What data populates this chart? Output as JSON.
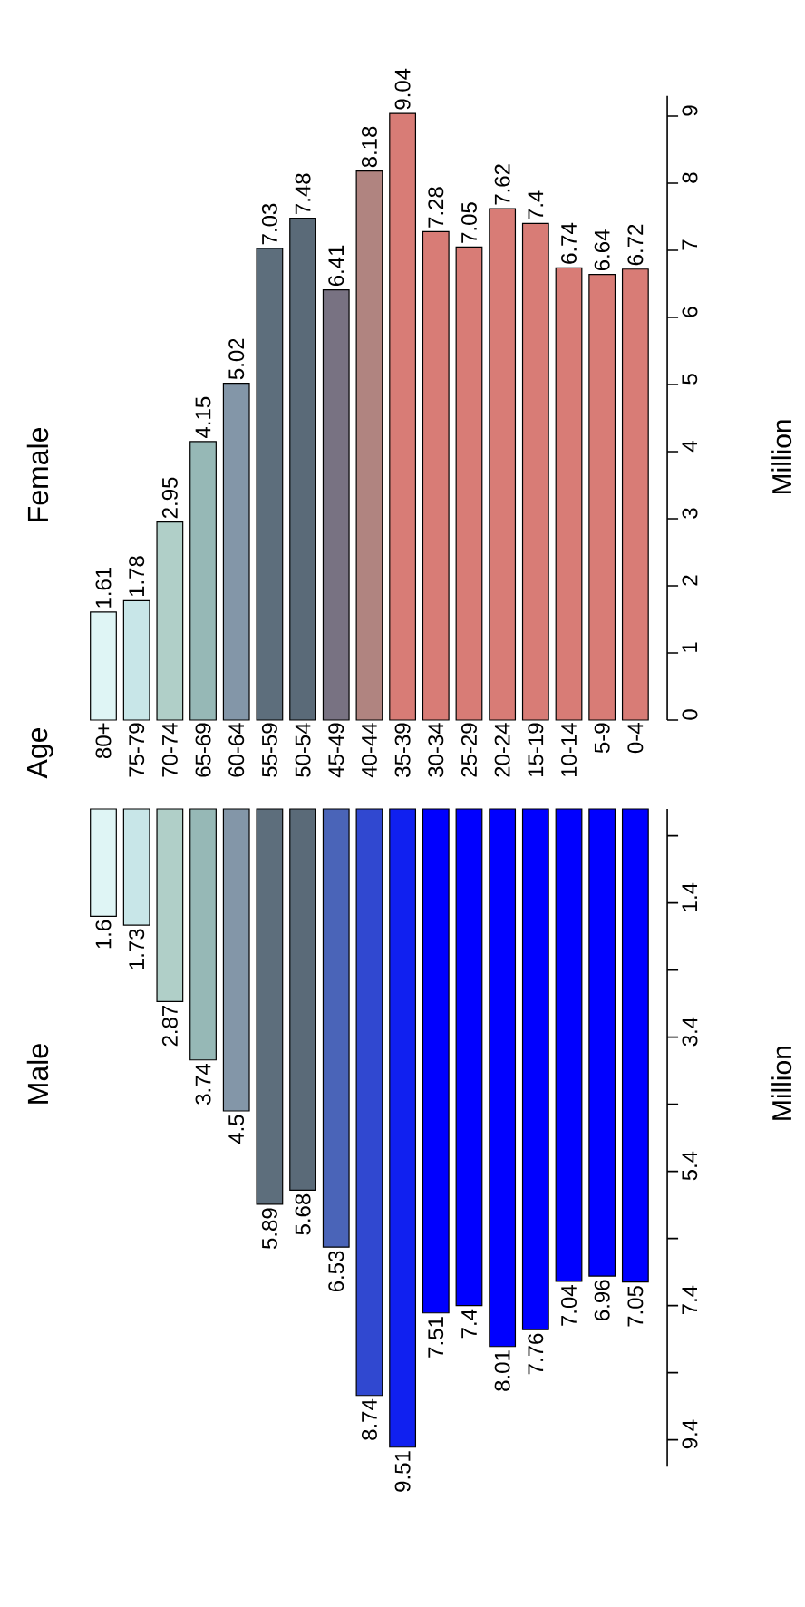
{
  "chart_data": [
    {
      "type": "bar",
      "title": "Female",
      "ylabel": "Million",
      "annotations": [
        "Age"
      ],
      "categories": [
        "80+",
        "75-79",
        "70-74",
        "65-69",
        "60-64",
        "55-59",
        "50-54",
        "45-49",
        "40-44",
        "35-39",
        "30-34",
        "25-29",
        "20-24",
        "15-19",
        "10-14",
        "5-9",
        "0-4"
      ],
      "values": [
        1.61,
        1.78,
        2.95,
        4.15,
        5.02,
        7.03,
        7.48,
        6.41,
        8.18,
        9.04,
        7.28,
        7.05,
        7.62,
        7.4,
        6.74,
        6.64,
        6.72
      ],
      "colors": [
        "#dff5f5",
        "#c8e6e8",
        "#b0cfc8",
        "#96b8b6",
        "#8396a8",
        "#5d6e7c",
        "#5a6a78",
        "#787282",
        "#b08480",
        "#d87c76",
        "#d87c76",
        "#d87c76",
        "#d87c76",
        "#d87c76",
        "#d87c76",
        "#d87c76",
        "#d87c76"
      ],
      "ylim": [
        0,
        9.3
      ],
      "yticks": [
        0,
        1,
        2,
        3,
        4,
        5,
        6,
        7,
        8,
        9
      ],
      "data_labels": true
    },
    {
      "type": "bar",
      "title": "Male",
      "ylabel": "Million",
      "categories": [
        null,
        null,
        null,
        null,
        null,
        null,
        null,
        null,
        null,
        null,
        null,
        null,
        null,
        null,
        null,
        null,
        null
      ],
      "values": [
        1.6,
        1.73,
        2.87,
        3.74,
        4.5,
        5.89,
        5.68,
        6.53,
        8.74,
        9.51,
        7.51,
        7.4,
        8.01,
        7.76,
        7.04,
        6.96,
        7.05
      ],
      "colors": [
        "#dff5f5",
        "#c8e6e8",
        "#b0cfc8",
        "#96b8b6",
        "#8396a8",
        "#5d6e7c",
        "#5a6a78",
        "#4a64b8",
        "#3048d0",
        "#1020f0",
        "#0000ff",
        "#0000ff",
        "#0000ff",
        "#0000ff",
        "#0000ff",
        "#0000ff",
        "#0000ff"
      ],
      "ylim": [
        9.8,
        0
      ],
      "yticks": [
        {
          "value": 0.4,
          "label": null
        },
        1.4,
        {
          "value": 2.4,
          "label": null
        },
        3.4,
        {
          "value": 4.4,
          "label": null
        },
        5.4,
        {
          "value": 6.4,
          "label": null
        },
        7.4,
        {
          "value": 8.4,
          "label": null
        },
        9.4
      ],
      "tick_labels": "y",
      "data_labels": true
    }
  ]
}
